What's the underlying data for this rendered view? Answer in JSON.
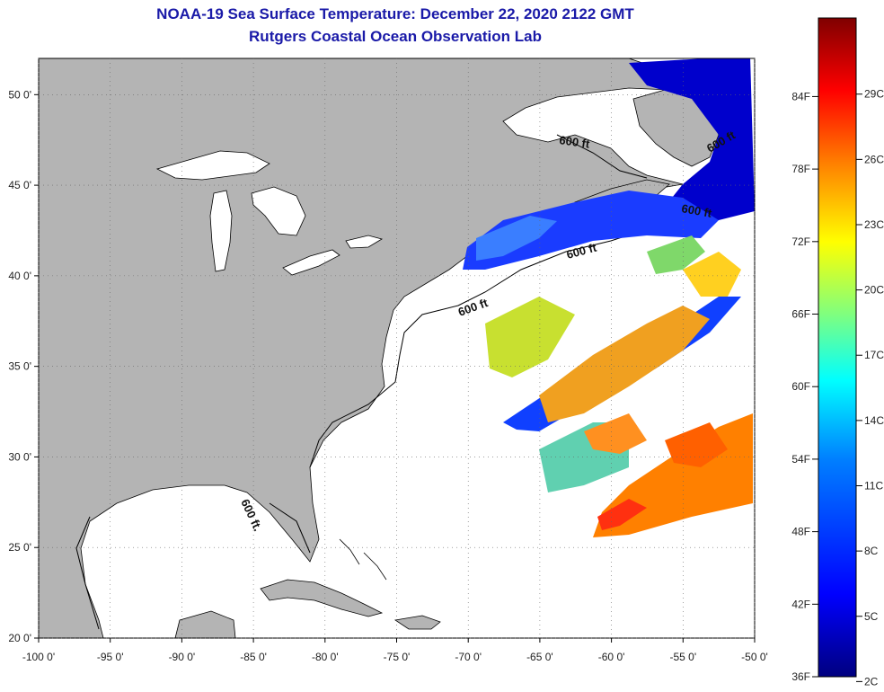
{
  "title": "NOAA-19 Sea Surface Temperature:  December 22, 2020 2122 GMT",
  "subtitle": "Rutgers Coastal Ocean Observation Lab",
  "map": {
    "lon_range": [
      -100,
      -50
    ],
    "lat_range": [
      20,
      52
    ],
    "grid": "dotted",
    "x_tick_labels": [
      "-100 0'",
      "-95 0'",
      "-90 0'",
      "-85 0'",
      "-80 0'",
      "-75 0'",
      "-70 0'",
      "-65 0'",
      "-60 0'",
      "-55 0'",
      "-50 0'"
    ],
    "y_tick_labels": [
      "50 0'",
      "45 0'",
      "40 0'",
      "35 0'",
      "30 0'",
      "25 0'",
      "20 0'"
    ],
    "land_color": "#b4b4b4",
    "water_color": "#ffffff",
    "contour_labels": [
      "600 ft",
      "600 ft",
      "600 ft",
      "600 ft",
      "600 ft",
      "600 ft."
    ]
  },
  "colorbar": {
    "fahrenheit_labels": [
      "84F",
      "78F",
      "72F",
      "66F",
      "60F",
      "54F",
      "48F",
      "42F",
      "36F"
    ],
    "celsius_labels": [
      "29C",
      "26C",
      "23C",
      "20C",
      "17C",
      "14C",
      "11C",
      "8C",
      "5C",
      "2C"
    ],
    "colors": [
      "#00007f",
      "#0000ff",
      "#007fff",
      "#00ffff",
      "#7fff7f",
      "#ffff00",
      "#ff7f00",
      "#ff0000",
      "#7f0000"
    ]
  }
}
